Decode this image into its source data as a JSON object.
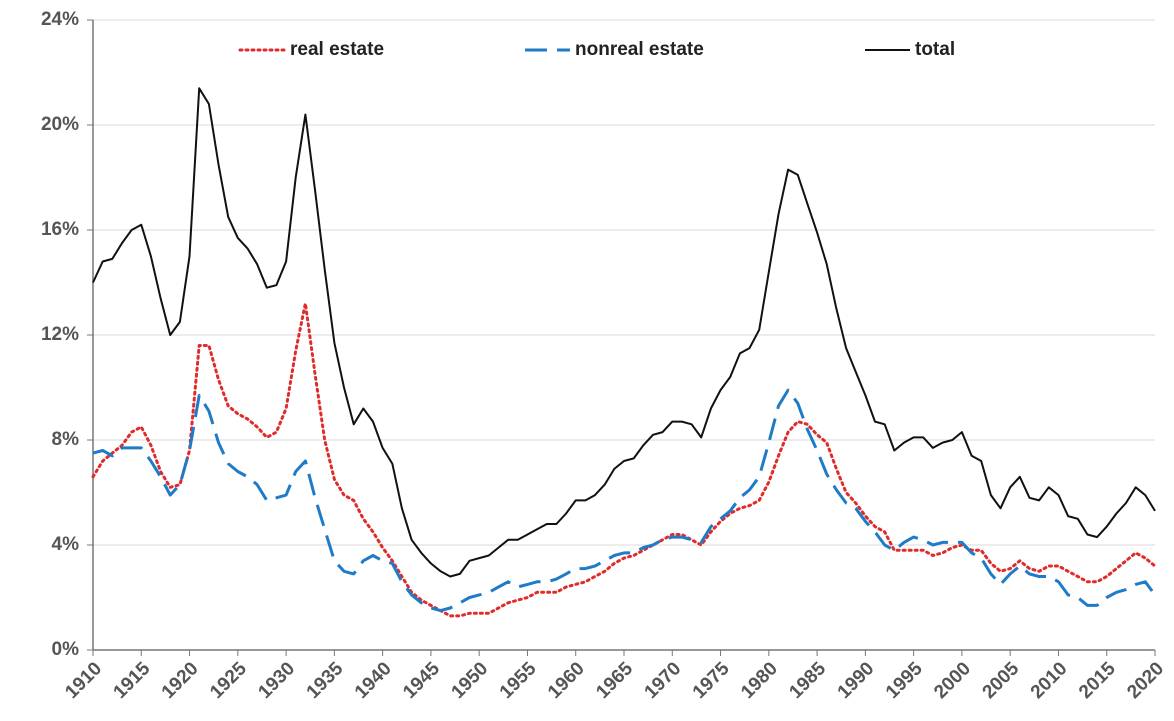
{
  "chart_data": {
    "type": "line",
    "x": [
      1910,
      1911,
      1912,
      1913,
      1914,
      1915,
      1916,
      1917,
      1918,
      1919,
      1920,
      1921,
      1922,
      1923,
      1924,
      1925,
      1926,
      1927,
      1928,
      1929,
      1930,
      1931,
      1932,
      1933,
      1934,
      1935,
      1936,
      1937,
      1938,
      1939,
      1940,
      1941,
      1942,
      1943,
      1944,
      1945,
      1946,
      1947,
      1948,
      1949,
      1950,
      1951,
      1952,
      1953,
      1954,
      1955,
      1956,
      1957,
      1958,
      1959,
      1960,
      1961,
      1962,
      1963,
      1964,
      1965,
      1966,
      1967,
      1968,
      1969,
      1970,
      1971,
      1972,
      1973,
      1974,
      1975,
      1976,
      1977,
      1978,
      1979,
      1980,
      1981,
      1982,
      1983,
      1984,
      1985,
      1986,
      1987,
      1988,
      1989,
      1990,
      1991,
      1992,
      1993,
      1994,
      1995,
      1996,
      1997,
      1998,
      1999,
      2000,
      2001,
      2002,
      2003,
      2004,
      2005,
      2006,
      2007,
      2008,
      2009,
      2010,
      2011,
      2012,
      2013,
      2014,
      2015,
      2016,
      2017,
      2018,
      2019,
      2020
    ],
    "series": [
      {
        "name": "real estate",
        "color": "#e02b2b",
        "style": "dotted",
        "values": [
          6.6,
          7.2,
          7.5,
          7.8,
          8.3,
          8.5,
          7.8,
          6.8,
          6.2,
          6.3,
          7.6,
          11.6,
          11.6,
          10.3,
          9.3,
          9.0,
          8.8,
          8.5,
          8.1,
          8.3,
          9.2,
          11.4,
          13.2,
          10.5,
          8.0,
          6.5,
          5.9,
          5.7,
          5.0,
          4.5,
          3.9,
          3.4,
          2.8,
          2.2,
          1.9,
          1.7,
          1.5,
          1.3,
          1.3,
          1.4,
          1.4,
          1.4,
          1.6,
          1.8,
          1.9,
          2.0,
          2.2,
          2.2,
          2.2,
          2.4,
          2.5,
          2.6,
          2.8,
          3.0,
          3.3,
          3.5,
          3.6,
          3.8,
          4.0,
          4.2,
          4.4,
          4.4,
          4.2,
          4.0,
          4.5,
          4.9,
          5.2,
          5.4,
          5.5,
          5.7,
          6.4,
          7.4,
          8.3,
          8.7,
          8.6,
          8.2,
          7.9,
          6.9,
          6.0,
          5.6,
          5.1,
          4.7,
          4.5,
          3.8,
          3.8,
          3.8,
          3.8,
          3.6,
          3.7,
          3.9,
          4.0,
          3.8,
          3.8,
          3.3,
          3.0,
          3.1,
          3.4,
          3.1,
          3.0,
          3.2,
          3.2,
          3.0,
          2.8,
          2.6,
          2.6,
          2.8,
          3.1,
          3.4,
          3.7,
          3.5,
          3.2
        ]
      },
      {
        "name": "nonreal estate",
        "color": "#1f7bc8",
        "style": "dashed",
        "values": [
          7.5,
          7.6,
          7.4,
          7.7,
          7.7,
          7.7,
          7.2,
          6.6,
          5.9,
          6.3,
          7.6,
          9.7,
          9.1,
          7.9,
          7.1,
          6.8,
          6.6,
          6.3,
          5.7,
          5.8,
          5.9,
          6.8,
          7.2,
          5.8,
          4.6,
          3.4,
          3.0,
          2.9,
          3.4,
          3.6,
          3.4,
          3.3,
          2.6,
          2.1,
          1.8,
          1.6,
          1.5,
          1.6,
          1.8,
          2.0,
          2.1,
          2.2,
          2.4,
          2.6,
          2.4,
          2.5,
          2.6,
          2.6,
          2.7,
          2.9,
          3.1,
          3.1,
          3.2,
          3.4,
          3.6,
          3.7,
          3.7,
          3.9,
          4.0,
          4.2,
          4.3,
          4.3,
          4.2,
          4.1,
          4.7,
          5.0,
          5.3,
          5.8,
          6.1,
          6.6,
          7.9,
          9.3,
          9.9,
          9.4,
          8.4,
          7.6,
          6.7,
          6.1,
          5.6,
          5.4,
          4.9,
          4.5,
          4.0,
          3.8,
          4.1,
          4.3,
          4.2,
          4.0,
          4.1,
          4.1,
          4.1,
          3.7,
          3.5,
          2.9,
          2.5,
          2.9,
          3.2,
          2.9,
          2.8,
          2.8,
          2.6,
          2.1,
          2.0,
          1.7,
          1.7,
          2.0,
          2.2,
          2.3,
          2.5,
          2.6,
          2.1
        ]
      },
      {
        "name": "total",
        "color": "#111111",
        "style": "solid",
        "values": [
          14.0,
          14.8,
          14.9,
          15.5,
          16.0,
          16.2,
          15.0,
          13.4,
          12.0,
          12.5,
          15.0,
          21.4,
          20.8,
          18.5,
          16.5,
          15.7,
          15.3,
          14.7,
          13.8,
          13.9,
          14.8,
          18.0,
          20.4,
          17.5,
          14.5,
          11.7,
          10.0,
          8.6,
          9.2,
          8.7,
          7.7,
          7.1,
          5.4,
          4.2,
          3.7,
          3.3,
          3.0,
          2.8,
          2.9,
          3.4,
          3.5,
          3.6,
          3.9,
          4.2,
          4.2,
          4.4,
          4.6,
          4.8,
          4.8,
          5.2,
          5.7,
          5.7,
          5.9,
          6.3,
          6.9,
          7.2,
          7.3,
          7.8,
          8.2,
          8.3,
          8.7,
          8.7,
          8.6,
          8.1,
          9.2,
          9.9,
          10.4,
          11.3,
          11.5,
          12.2,
          14.4,
          16.6,
          18.3,
          18.1,
          17.0,
          15.9,
          14.7,
          13.0,
          11.5,
          10.6,
          9.7,
          8.7,
          8.6,
          7.6,
          7.9,
          8.1,
          8.1,
          7.7,
          7.9,
          8.0,
          8.3,
          7.4,
          7.2,
          5.9,
          5.4,
          6.2,
          6.6,
          5.8,
          5.7,
          6.2,
          5.9,
          5.1,
          5.0,
          4.4,
          4.3,
          4.7,
          5.2,
          5.6,
          6.2,
          5.9,
          5.3
        ]
      }
    ],
    "xlim": [
      1910,
      2020
    ],
    "xticks": [
      1910,
      1915,
      1920,
      1925,
      1930,
      1935,
      1940,
      1945,
      1950,
      1955,
      1960,
      1965,
      1970,
      1975,
      1980,
      1985,
      1990,
      1995,
      2000,
      2005,
      2010,
      2015,
      2020
    ],
    "ylim": [
      0,
      24
    ],
    "yticks": [
      {
        "value": 0,
        "label": "0%"
      },
      {
        "value": 4,
        "label": "4%"
      },
      {
        "value": 8,
        "label": "8%"
      },
      {
        "value": 12,
        "label": "12%"
      },
      {
        "value": 16,
        "label": "16%"
      },
      {
        "value": 20,
        "label": "20%"
      },
      {
        "value": 24,
        "label": "24%"
      }
    ],
    "grid": true,
    "legend": "top"
  }
}
